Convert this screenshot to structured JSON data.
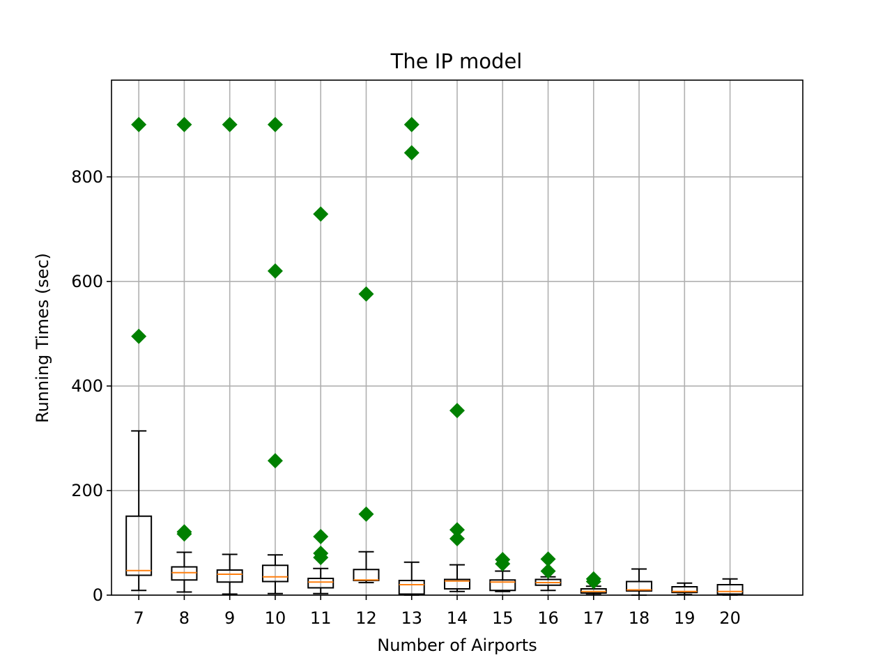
{
  "chart_data": {
    "type": "box",
    "title": "The IP model",
    "xlabel": "Number of Airports",
    "ylabel": "Running Times (sec)",
    "categories": [
      "7",
      "8",
      "9",
      "10",
      "11",
      "12",
      "13",
      "14",
      "15",
      "16",
      "17",
      "18",
      "19",
      "20"
    ],
    "ylim": [
      0,
      985
    ],
    "yticks": [
      0,
      200,
      400,
      600,
      800
    ],
    "ytick_labels": [
      "0",
      "200",
      "400",
      "600",
      "800"
    ],
    "grid": true,
    "colors": {
      "box": "#000000",
      "median": "#ff7f0e",
      "outlier": "#008000",
      "grid": "#b0b0b0"
    },
    "boxes": [
      {
        "category": "7",
        "whislo": 9,
        "q1": 38,
        "med": 47,
        "q3": 151,
        "whishi": 314,
        "fliers": [
          900,
          495
        ]
      },
      {
        "category": "8",
        "whislo": 6,
        "q1": 29,
        "med": 43,
        "q3": 54,
        "whishi": 82,
        "fliers": [
          900,
          121,
          117
        ]
      },
      {
        "category": "9",
        "whislo": 2,
        "q1": 25,
        "med": 40,
        "q3": 48,
        "whishi": 78,
        "fliers": [
          900
        ]
      },
      {
        "category": "10",
        "whislo": 3,
        "q1": 26,
        "med": 35,
        "q3": 57,
        "whishi": 77,
        "fliers": [
          900,
          620,
          257
        ]
      },
      {
        "category": "11",
        "whislo": 3,
        "q1": 14,
        "med": 25,
        "q3": 32,
        "whishi": 51,
        "fliers": [
          729,
          112,
          80,
          72
        ]
      },
      {
        "category": "12",
        "whislo": 24,
        "q1": 28,
        "med": 29,
        "q3": 49,
        "whishi": 83,
        "fliers": [
          576,
          155
        ]
      },
      {
        "category": "13",
        "whislo": 0,
        "q1": 2,
        "med": 20,
        "q3": 28,
        "whishi": 63,
        "fliers": [
          900,
          846
        ]
      },
      {
        "category": "14",
        "whislo": 7,
        "q1": 12,
        "med": 27,
        "q3": 30,
        "whishi": 58,
        "fliers": [
          353,
          125,
          108
        ]
      },
      {
        "category": "15",
        "whislo": 7,
        "q1": 9,
        "med": 25,
        "q3": 29,
        "whishi": 46,
        "fliers": [
          68,
          60
        ]
      },
      {
        "category": "16",
        "whislo": 9,
        "q1": 19,
        "med": 24,
        "q3": 30,
        "whishi": 35,
        "fliers": [
          69,
          46
        ]
      },
      {
        "category": "17",
        "whislo": 1,
        "q1": 4,
        "med": 7,
        "q3": 12,
        "whishi": 17,
        "fliers": [
          31,
          26
        ]
      },
      {
        "category": "18",
        "whislo": 0,
        "q1": 8,
        "med": 10,
        "q3": 26,
        "whishi": 50,
        "fliers": []
      },
      {
        "category": "19",
        "whislo": 1,
        "q1": 5,
        "med": 7,
        "q3": 16,
        "whishi": 23,
        "fliers": []
      },
      {
        "category": "20",
        "whislo": 0,
        "q1": 2,
        "med": 7,
        "q3": 20,
        "whishi": 31,
        "fliers": []
      }
    ]
  }
}
